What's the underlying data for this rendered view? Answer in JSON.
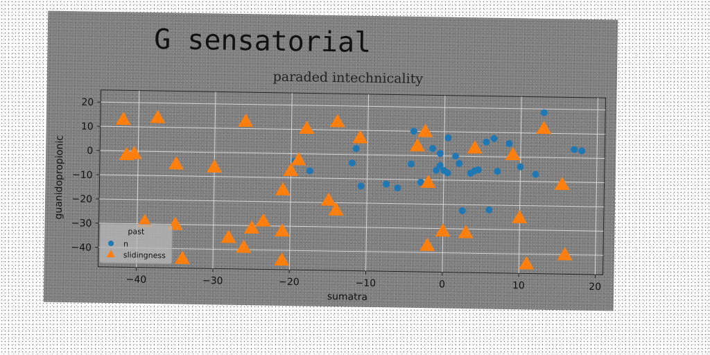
{
  "chart_data": {
    "type": "scatter",
    "title": "G sensatorial",
    "subtitle": "paraded intechnicality",
    "xlabel": "sumatra",
    "ylabel": "guanidopropionic",
    "xlim": [
      -45,
      21
    ],
    "ylim": [
      -48,
      25
    ],
    "xticks": [
      -40,
      -30,
      -20,
      -10,
      0,
      10,
      20
    ],
    "yticks": [
      -40,
      -30,
      -20,
      -10,
      0,
      10,
      20
    ],
    "grid": true,
    "legend": {
      "title": "past",
      "placement": "lower-left"
    },
    "series": [
      {
        "name": "n",
        "marker": "circle",
        "color": "#1f77b4",
        "points": [
          [
            -19.5,
            -3
          ],
          [
            -17.5,
            -7
          ],
          [
            -11.5,
            2.5
          ],
          [
            -12,
            -3.5
          ],
          [
            -10.8,
            -13
          ],
          [
            -7.5,
            -12
          ],
          [
            -6,
            -13.5
          ],
          [
            -4.3,
            -3.5
          ],
          [
            -4,
            10
          ],
          [
            -3,
            -11
          ],
          [
            -1.5,
            3
          ],
          [
            -0.5,
            1
          ],
          [
            0.5,
            7.5
          ],
          [
            -1,
            -6
          ],
          [
            -0.5,
            -4
          ],
          [
            0,
            -6
          ],
          [
            0.5,
            -7
          ],
          [
            1.5,
            0
          ],
          [
            2,
            -3
          ],
          [
            2.5,
            -22.5
          ],
          [
            3.5,
            -7
          ],
          [
            4,
            -6
          ],
          [
            4.5,
            -5.5
          ],
          [
            5.5,
            6
          ],
          [
            6,
            -22
          ],
          [
            6.5,
            7.5
          ],
          [
            7,
            -6
          ],
          [
            8.5,
            5.5
          ],
          [
            10,
            -4
          ],
          [
            12,
            -7
          ],
          [
            13,
            18.5
          ],
          [
            17,
            3.5
          ],
          [
            18,
            3
          ]
        ]
      },
      {
        "name": "slidingness",
        "marker": "triangle",
        "color": "#ff7f0e",
        "points": [
          [
            -42,
            13
          ],
          [
            -37.5,
            14
          ],
          [
            -40.5,
            -1
          ],
          [
            -41.5,
            -1.5
          ],
          [
            -35,
            -5
          ],
          [
            -39,
            -29
          ],
          [
            -35,
            -30
          ],
          [
            -34,
            -44
          ],
          [
            -30,
            -6
          ],
          [
            -26,
            13
          ],
          [
            -28,
            -35
          ],
          [
            -26,
            -39
          ],
          [
            -25,
            -31
          ],
          [
            -23.5,
            -28
          ],
          [
            -21,
            -15
          ],
          [
            -21,
            -32
          ],
          [
            -21,
            -44
          ],
          [
            -20,
            -7
          ],
          [
            -19,
            -2.5
          ],
          [
            -18,
            10.5
          ],
          [
            -15,
            -19
          ],
          [
            -14,
            13.5
          ],
          [
            -14,
            -23
          ],
          [
            -11,
            7
          ],
          [
            -3.5,
            4
          ],
          [
            -2.5,
            10
          ],
          [
            -2,
            -11
          ],
          [
            -2,
            -37
          ],
          [
            0,
            -31
          ],
          [
            3,
            -31.5
          ],
          [
            4,
            3.5
          ],
          [
            9,
            1
          ],
          [
            10,
            -25
          ],
          [
            11,
            -44
          ],
          [
            13,
            12
          ],
          [
            15.5,
            -11
          ],
          [
            16,
            -40
          ]
        ]
      }
    ]
  }
}
